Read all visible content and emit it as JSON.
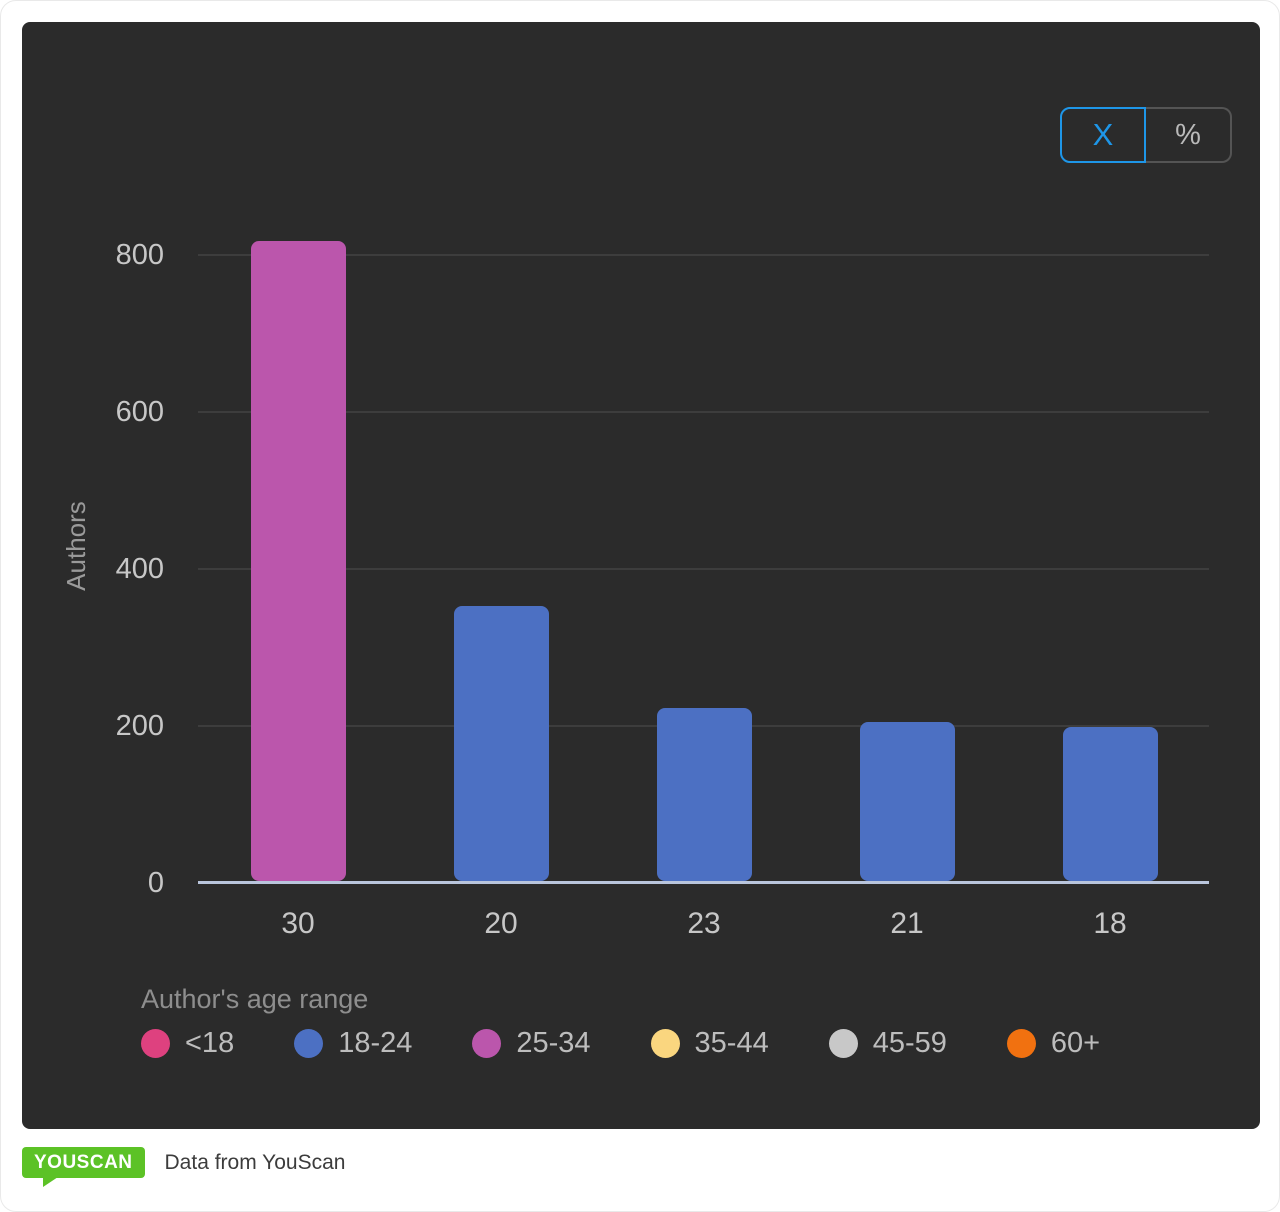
{
  "controls": {
    "mode_toggle": {
      "options": [
        {
          "label": "X",
          "active": true
        },
        {
          "label": "%",
          "active": false
        }
      ]
    }
  },
  "chart_data": {
    "type": "bar",
    "categories": [
      "30",
      "20",
      "23",
      "21",
      "18"
    ],
    "values": [
      815,
      350,
      220,
      202,
      196
    ],
    "bar_colors": [
      "#BB56AC",
      "#4C70C3",
      "#4C70C3",
      "#4C70C3",
      "#4C70C3"
    ],
    "ylabel": "Authors",
    "xlabel": "",
    "yticks": [
      0,
      200,
      400,
      600,
      800
    ],
    "ylim": [
      0,
      825
    ],
    "grid": true,
    "legend_position": "bottom",
    "legend_title": "Author's age range",
    "legend": [
      {
        "label": "<18",
        "color": "#DE417F"
      },
      {
        "label": "18-24",
        "color": "#4C70C3"
      },
      {
        "label": "25-34",
        "color": "#BB56AC"
      },
      {
        "label": "35-44",
        "color": "#FAD67F"
      },
      {
        "label": "45-59",
        "color": "#C8C8C8"
      },
      {
        "label": "60+",
        "color": "#F17110"
      }
    ]
  },
  "footer": {
    "logo_text": "YOUSCAN",
    "caption": "Data from YouScan"
  },
  "colors": {
    "card_bg": "#2B2B2B",
    "accent_blue": "#1E96E8",
    "logo_green": "#5CC226",
    "baseline": "#B9C5DC",
    "gridline": "#3D3D3D"
  }
}
